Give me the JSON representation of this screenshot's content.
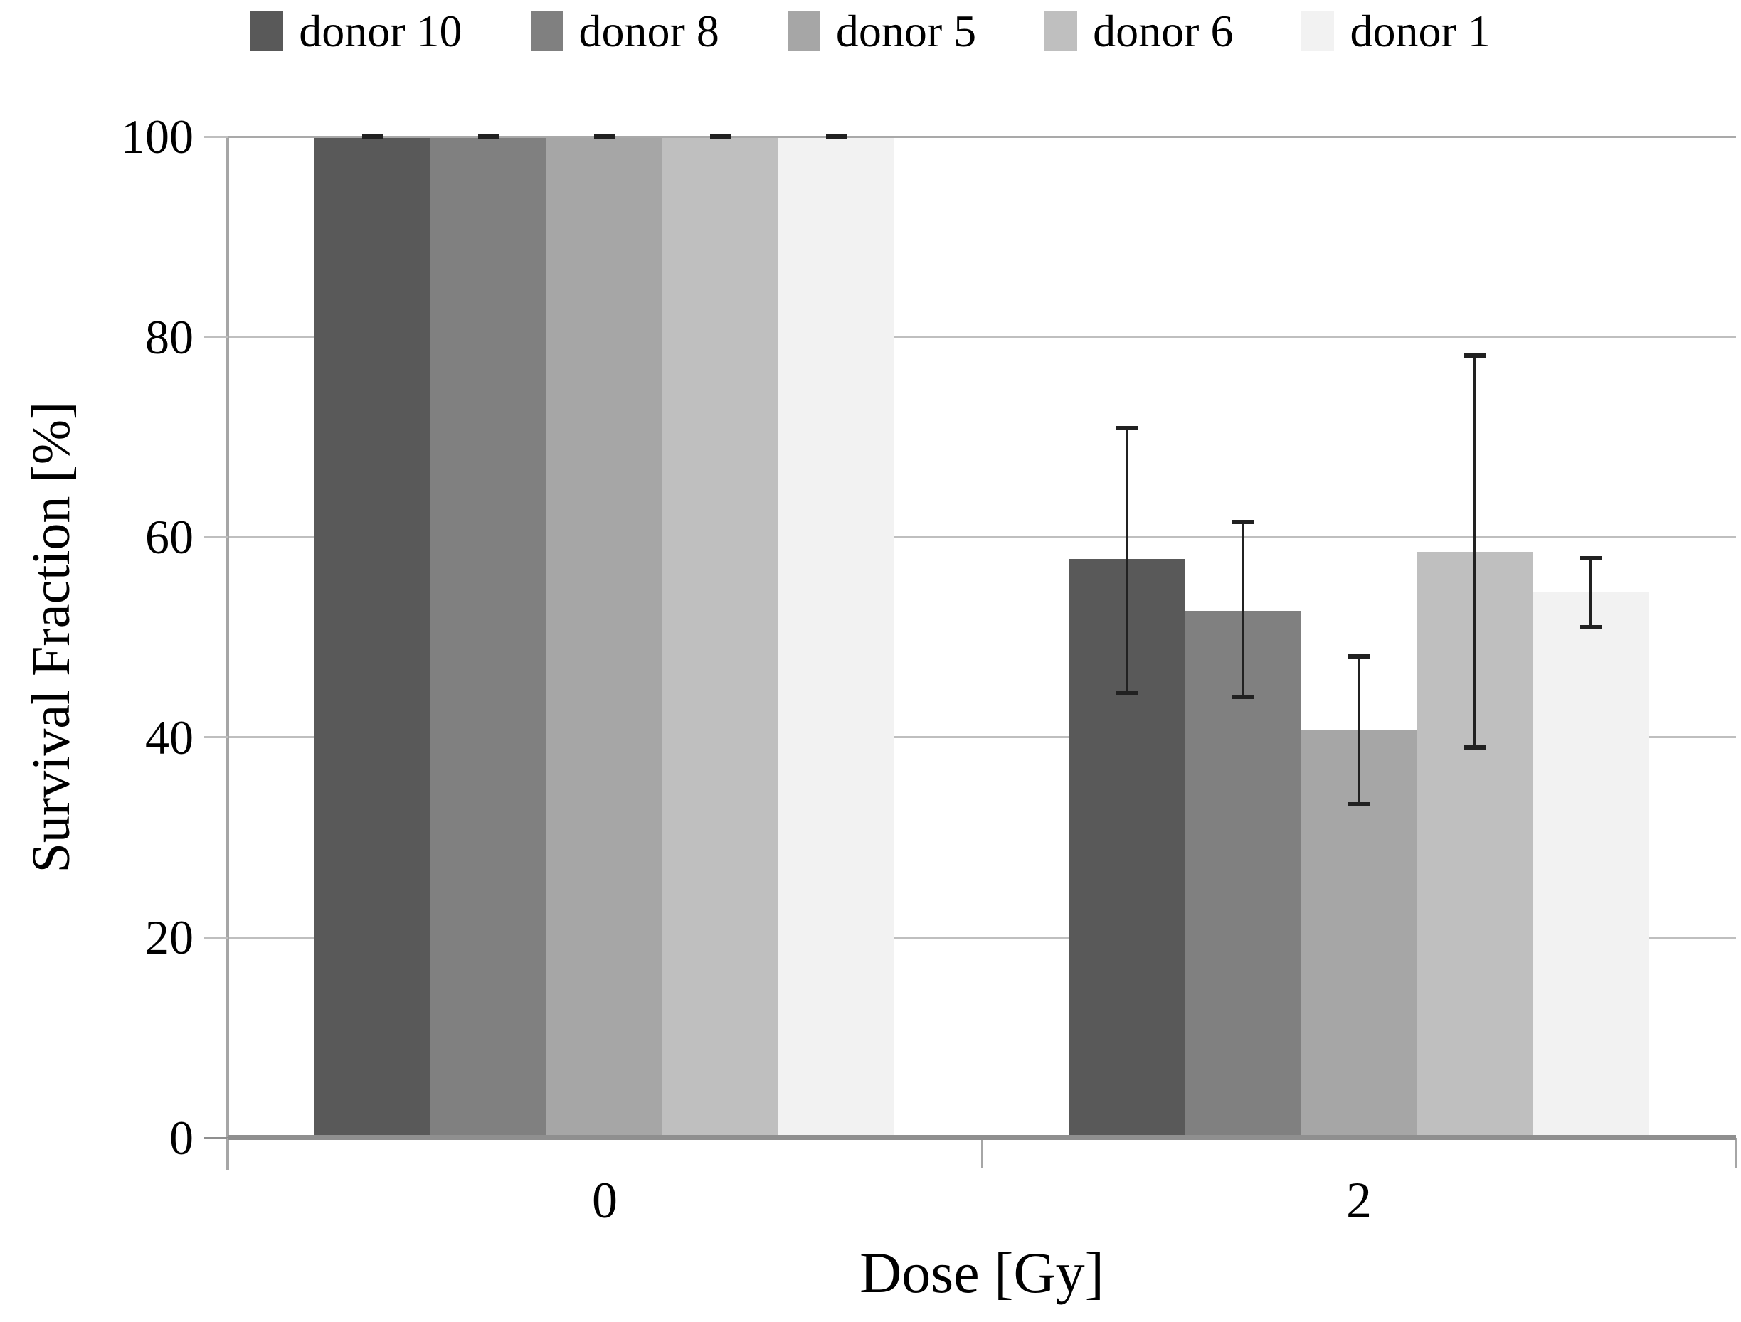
{
  "chart_data": {
    "type": "bar",
    "title": "",
    "xlabel": "Dose [Gy]",
    "ylabel": "Survival Fraction [%]",
    "categories": [
      "0",
      "2"
    ],
    "y_ticks": [
      "100",
      "80",
      "60",
      "40",
      "20",
      "0"
    ],
    "ylim": [
      0,
      100
    ],
    "grid": true,
    "legend_position": "top",
    "series": [
      {
        "name": "donor 10",
        "color": "#595959",
        "values": [
          100,
          57.8
        ],
        "err_upper": [
          100,
          70.9
        ],
        "err_lower": [
          100,
          44.4
        ]
      },
      {
        "name": "donor 8",
        "color": "#808080",
        "values": [
          100,
          52.6
        ],
        "err_upper": [
          100,
          61.5
        ],
        "err_lower": [
          100,
          44.0
        ]
      },
      {
        "name": "donor 5",
        "color": "#a6a6a6",
        "values": [
          100,
          40.7
        ],
        "err_upper": [
          100,
          48.1
        ],
        "err_lower": [
          100,
          33.3
        ]
      },
      {
        "name": "donor 6",
        "color": "#bfbfbf",
        "values": [
          100,
          58.5
        ],
        "err_upper": [
          100,
          78.1
        ],
        "err_lower": [
          100,
          39.0
        ]
      },
      {
        "name": "donor 1",
        "color": "#f2f2f2",
        "values": [
          100,
          54.5
        ],
        "err_upper": [
          100,
          57.9
        ],
        "err_lower": [
          100,
          51.0
        ]
      }
    ],
    "style_colors": {
      "gridline": "#bfbfbf",
      "top_gridline": "#a9a9a9",
      "axis_line": "#a6a6a6",
      "baseline": "#8f8f8f",
      "error_bar": "#212121",
      "text": "#000000",
      "background": "#ffffff"
    }
  }
}
